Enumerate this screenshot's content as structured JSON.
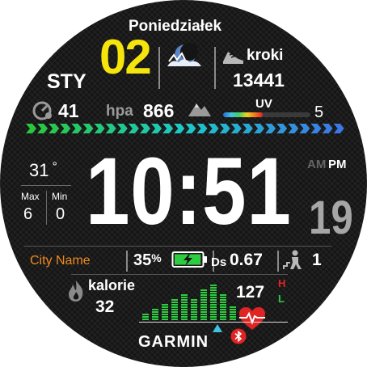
{
  "header": {
    "day_name": "Poniedziałek",
    "day_number": "02",
    "month": "STY"
  },
  "steps": {
    "label": "kroki",
    "value": "13441",
    "icon": "shoe-icon"
  },
  "barometer": {
    "value": "41",
    "pressure_label": "hpa",
    "pressure_value": "866",
    "icon": "gauge-icon"
  },
  "uv": {
    "label": "UV",
    "value": "5",
    "level_fraction": 0.45
  },
  "weather": {
    "temperature": "31",
    "degree": "°",
    "max_label": "Max",
    "min_label": "Min",
    "max_value": "6",
    "min_value": "0",
    "icon": "moon-cloud-icon"
  },
  "time": {
    "value": "10:51",
    "am": "AM",
    "pm": "PM",
    "seconds": "19"
  },
  "city": {
    "name": "City Name"
  },
  "battery": {
    "percent": "35",
    "percent_sign": "%",
    "level_fraction": 0.35
  },
  "distance": {
    "label": "Ds",
    "value": "0.67"
  },
  "floors": {
    "value": "1"
  },
  "calories": {
    "label": "kalorie",
    "value": "32",
    "icon": "flame-icon"
  },
  "heart": {
    "value": "127",
    "high_label": "H",
    "low_label": "L",
    "icon": "heart-icon"
  },
  "brand": {
    "name": "GARMIN"
  },
  "colors": {
    "yellow": "#f5e50c",
    "orange": "#f08a1e",
    "green": "#2ecc40",
    "red": "#e02424"
  }
}
